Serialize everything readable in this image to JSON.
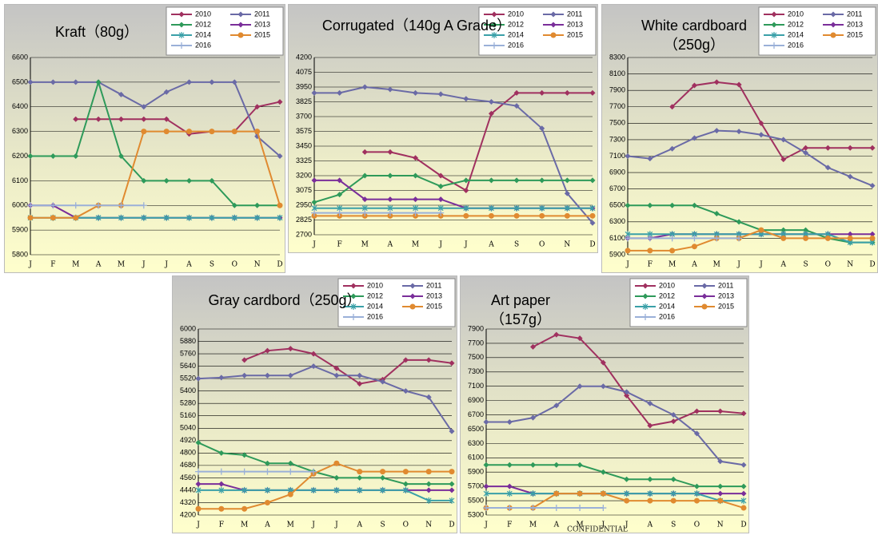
{
  "chart_data": [
    {
      "type": "line",
      "title": "Kraft（80g）",
      "categories": [
        "J",
        "F",
        "M",
        "A",
        "M",
        "J",
        "J",
        "A",
        "S",
        "O",
        "N",
        "D"
      ],
      "ylim": [
        5800,
        6600
      ],
      "yticks": [
        5800,
        5900,
        6000,
        6100,
        6200,
        6300,
        6400,
        6500,
        6600
      ],
      "grid": true,
      "series": [
        {
          "name": "2010",
          "color": "#a0305f",
          "marker": "diamond",
          "values": [
            null,
            null,
            6350,
            6350,
            6350,
            6350,
            6350,
            6290,
            6300,
            6300,
            6400,
            6420
          ]
        },
        {
          "name": "2011",
          "color": "#6a6aa6",
          "marker": "diamond",
          "values": [
            6500,
            6500,
            6500,
            6500,
            6450,
            6400,
            6460,
            6500,
            6500,
            6500,
            6280,
            6200
          ]
        },
        {
          "name": "2012",
          "color": "#2e9a5a",
          "marker": "diamond",
          "values": [
            6200,
            6200,
            6200,
            6500,
            6200,
            6100,
            6100,
            6100,
            6100,
            6000,
            6000,
            6000
          ]
        },
        {
          "name": "2013",
          "color": "#7a2e9a",
          "marker": "diamond",
          "values": [
            6000,
            6000,
            5950,
            5950,
            5950,
            5950,
            5950,
            5950,
            5950,
            5950,
            5950,
            5950
          ]
        },
        {
          "name": "2014",
          "color": "#3aa0a8",
          "marker": "star",
          "values": [
            5950,
            5950,
            5950,
            5950,
            5950,
            5950,
            5950,
            5950,
            5950,
            5950,
            5950,
            5950
          ]
        },
        {
          "name": "2015",
          "color": "#e08a30",
          "marker": "circle",
          "values": [
            5950,
            5950,
            5950,
            6000,
            6000,
            6300,
            6300,
            6300,
            6300,
            6300,
            6300,
            6000
          ]
        },
        {
          "name": "2016",
          "color": "#9ab0d8",
          "marker": "plus",
          "values": [
            6000,
            6000,
            6000,
            6000,
            6000,
            6000,
            null,
            null,
            null,
            null,
            null,
            null
          ]
        }
      ]
    },
    {
      "type": "line",
      "title": "Corrugated（140g A Grade）",
      "categories": [
        "J",
        "F",
        "M",
        "A",
        "M",
        "J",
        "J",
        "A",
        "S",
        "O",
        "N",
        "D"
      ],
      "ylim": [
        2700,
        4200
      ],
      "yticks": [
        2700,
        2825,
        2950,
        3075,
        3200,
        3325,
        3450,
        3575,
        3700,
        3825,
        3950,
        4075,
        4200
      ],
      "grid": true,
      "series": [
        {
          "name": "2010",
          "color": "#a0305f",
          "marker": "diamond",
          "values": [
            null,
            null,
            3400,
            3400,
            3350,
            3200,
            3075,
            3725,
            3900,
            3900,
            3900,
            3900
          ]
        },
        {
          "name": "2011",
          "color": "#6a6aa6",
          "marker": "diamond",
          "values": [
            3900,
            3900,
            3950,
            3930,
            3900,
            3890,
            3850,
            3825,
            3790,
            3600,
            3050,
            2800
          ]
        },
        {
          "name": "2012",
          "color": "#2e9a5a",
          "marker": "diamond",
          "values": [
            2975,
            3040,
            3200,
            3200,
            3200,
            3110,
            3160,
            3160,
            3160,
            3160,
            3160,
            3160
          ]
        },
        {
          "name": "2013",
          "color": "#7a2e9a",
          "marker": "diamond",
          "values": [
            3160,
            3160,
            3000,
            3000,
            3000,
            3000,
            2925,
            2925,
            2925,
            2925,
            2925,
            2925
          ]
        },
        {
          "name": "2014",
          "color": "#3aa0a8",
          "marker": "star",
          "values": [
            2925,
            2925,
            2925,
            2925,
            2925,
            2925,
            2925,
            2925,
            2925,
            2925,
            2925,
            2925
          ]
        },
        {
          "name": "2015",
          "color": "#e08a30",
          "marker": "circle",
          "values": [
            2860,
            2860,
            2860,
            2860,
            2860,
            2860,
            2860,
            2860,
            2860,
            2860,
            2860,
            2860
          ]
        },
        {
          "name": "2016",
          "color": "#9ab0d8",
          "marker": "plus",
          "values": [
            2885,
            2885,
            2885,
            2885,
            2885,
            2885,
            null,
            null,
            null,
            null,
            null,
            null
          ]
        }
      ]
    },
    {
      "type": "line",
      "title": "White cardboard（250g）",
      "categories": [
        "J",
        "F",
        "M",
        "A",
        "M",
        "J",
        "J",
        "A",
        "S",
        "O",
        "N",
        "D"
      ],
      "ylim": [
        5900,
        8300
      ],
      "yticks": [
        5900,
        6100,
        6300,
        6500,
        6700,
        6900,
        7100,
        7300,
        7500,
        7700,
        7900,
        8100,
        8300
      ],
      "grid": true,
      "series": [
        {
          "name": "2010",
          "color": "#a0305f",
          "marker": "diamond",
          "values": [
            null,
            null,
            7700,
            7960,
            8000,
            7970,
            7500,
            7060,
            7200,
            7200,
            7200,
            7200
          ]
        },
        {
          "name": "2011",
          "color": "#6a6aa6",
          "marker": "diamond",
          "values": [
            7100,
            7070,
            7190,
            7320,
            7410,
            7400,
            7360,
            7300,
            7140,
            6960,
            6850,
            6740
          ]
        },
        {
          "name": "2012",
          "color": "#2e9a5a",
          "marker": "diamond",
          "values": [
            6500,
            6500,
            6500,
            6500,
            6400,
            6300,
            6200,
            6200,
            6200,
            6100,
            6050,
            6050
          ]
        },
        {
          "name": "2013",
          "color": "#7a2e9a",
          "marker": "diamond",
          "values": [
            6100,
            6100,
            6150,
            6150,
            6150,
            6150,
            6150,
            6150,
            6150,
            6150,
            6150,
            6150
          ]
        },
        {
          "name": "2014",
          "color": "#3aa0a8",
          "marker": "star",
          "values": [
            6150,
            6150,
            6150,
            6150,
            6150,
            6150,
            6150,
            6150,
            6150,
            6150,
            6050,
            6050
          ]
        },
        {
          "name": "2015",
          "color": "#e08a30",
          "marker": "circle",
          "values": [
            5950,
            5950,
            5950,
            6000,
            6100,
            6100,
            6200,
            6100,
            6100,
            6100,
            6100,
            6100
          ]
        },
        {
          "name": "2016",
          "color": "#9ab0d8",
          "marker": "plus",
          "values": [
            6100,
            6100,
            6100,
            6100,
            6100,
            6100,
            null,
            null,
            null,
            null,
            null,
            null
          ]
        }
      ]
    },
    {
      "type": "line",
      "title": "Gray cardbord（250g）",
      "categories": [
        "J",
        "F",
        "M",
        "A",
        "M",
        "J",
        "J",
        "A",
        "S",
        "O",
        "N",
        "D"
      ],
      "ylim": [
        4200,
        6000
      ],
      "yticks": [
        4200,
        4320,
        4440,
        4560,
        4680,
        4800,
        4920,
        5040,
        5160,
        5280,
        5400,
        5520,
        5640,
        5760,
        5880,
        6000
      ],
      "grid": true,
      "series": [
        {
          "name": "2010",
          "color": "#a0305f",
          "marker": "diamond",
          "values": [
            null,
            null,
            5700,
            5790,
            5810,
            5760,
            5620,
            5470,
            5510,
            5700,
            5700,
            5670
          ]
        },
        {
          "name": "2011",
          "color": "#6a6aa6",
          "marker": "diamond",
          "values": [
            5520,
            5530,
            5550,
            5550,
            5550,
            5640,
            5550,
            5550,
            5490,
            5400,
            5340,
            5010
          ]
        },
        {
          "name": "2012",
          "color": "#2e9a5a",
          "marker": "diamond",
          "values": [
            4900,
            4800,
            4780,
            4700,
            4700,
            4620,
            4560,
            4560,
            4560,
            4500,
            4500,
            4500
          ]
        },
        {
          "name": "2013",
          "color": "#7a2e9a",
          "marker": "diamond",
          "values": [
            4500,
            4500,
            4440,
            4440,
            4440,
            4440,
            4440,
            4440,
            4440,
            4440,
            4440,
            4440
          ]
        },
        {
          "name": "2014",
          "color": "#3aa0a8",
          "marker": "star",
          "values": [
            4440,
            4440,
            4440,
            4440,
            4440,
            4440,
            4440,
            4440,
            4440,
            4440,
            4340,
            4340
          ]
        },
        {
          "name": "2015",
          "color": "#e08a30",
          "marker": "circle",
          "values": [
            4260,
            4260,
            4260,
            4320,
            4400,
            4600,
            4700,
            4620,
            4620,
            4620,
            4620,
            4620
          ]
        },
        {
          "name": "2016",
          "color": "#9ab0d8",
          "marker": "plus",
          "values": [
            4620,
            4620,
            4620,
            4620,
            4620,
            4620,
            null,
            null,
            null,
            null,
            null,
            null
          ]
        }
      ]
    },
    {
      "type": "line",
      "title": "Art paper（157g）",
      "watermark": "CONFIDENTIAL",
      "categories": [
        "J",
        "F",
        "M",
        "A",
        "M",
        "J",
        "J",
        "A",
        "S",
        "O",
        "N",
        "D"
      ],
      "ylim": [
        5300,
        7900
      ],
      "yticks": [
        5300,
        5500,
        5700,
        5900,
        6100,
        6300,
        6500,
        6700,
        6900,
        7100,
        7300,
        7500,
        7700,
        7900
      ],
      "grid": true,
      "series": [
        {
          "name": "2010",
          "color": "#a0305f",
          "marker": "diamond",
          "values": [
            null,
            null,
            7650,
            7820,
            7770,
            7430,
            6970,
            6550,
            6610,
            6750,
            6750,
            6720
          ]
        },
        {
          "name": "2011",
          "color": "#6a6aa6",
          "marker": "diamond",
          "values": [
            6600,
            6600,
            6660,
            6830,
            7100,
            7100,
            7020,
            6860,
            6700,
            6440,
            6050,
            6000
          ]
        },
        {
          "name": "2012",
          "color": "#2e9a5a",
          "marker": "diamond",
          "values": [
            6000,
            6000,
            6000,
            6000,
            6000,
            5900,
            5800,
            5800,
            5800,
            5700,
            5700,
            5700
          ]
        },
        {
          "name": "2013",
          "color": "#7a2e9a",
          "marker": "diamond",
          "values": [
            5700,
            5700,
            5600,
            5600,
            5600,
            5600,
            5600,
            5600,
            5600,
            5600,
            5600,
            5600
          ]
        },
        {
          "name": "2014",
          "color": "#3aa0a8",
          "marker": "star",
          "values": [
            5600,
            5600,
            5600,
            5600,
            5600,
            5600,
            5600,
            5600,
            5600,
            5600,
            5500,
            5500
          ]
        },
        {
          "name": "2015",
          "color": "#e08a30",
          "marker": "circle",
          "values": [
            5400,
            5400,
            5400,
            5600,
            5600,
            5600,
            5500,
            5500,
            5500,
            5500,
            5500,
            5400
          ]
        },
        {
          "name": "2016",
          "color": "#9ab0d8",
          "marker": "plus",
          "values": [
            5400,
            5400,
            5400,
            5400,
            5400,
            5400,
            null,
            null,
            null,
            null,
            null,
            null
          ]
        }
      ]
    }
  ]
}
